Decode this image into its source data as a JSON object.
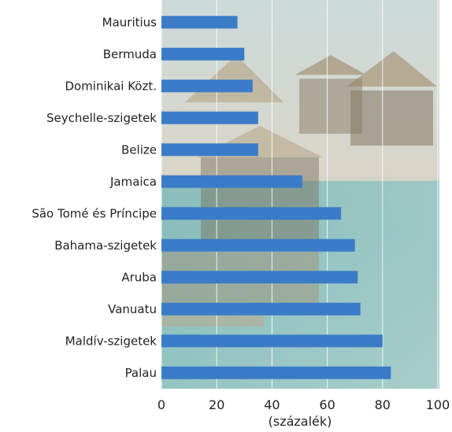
{
  "chart_data": {
    "type": "bar",
    "orientation": "horizontal",
    "categories": [
      "Mauritius",
      "Bermuda",
      "Dominikai Közt.",
      "Seychelle-szigetek",
      "Belize",
      "Jamaica",
      "São Tomé és Príncipe",
      "Bahama-szigetek",
      "Aruba",
      "Vanuatu",
      "Maldív-szigetek",
      "Palau"
    ],
    "values": [
      27.5,
      30,
      33,
      35,
      35,
      51,
      65,
      70,
      71,
      72,
      80,
      83
    ],
    "xlabel": "(százalék)",
    "ylabel": "",
    "xlim": [
      0,
      100
    ],
    "xticks": [
      "0",
      "20",
      "40",
      "60",
      "80",
      "100"
    ],
    "grid": "vertical",
    "bar_color": "#3a7cc8",
    "background": "tropical overwater bungalows photo"
  }
}
